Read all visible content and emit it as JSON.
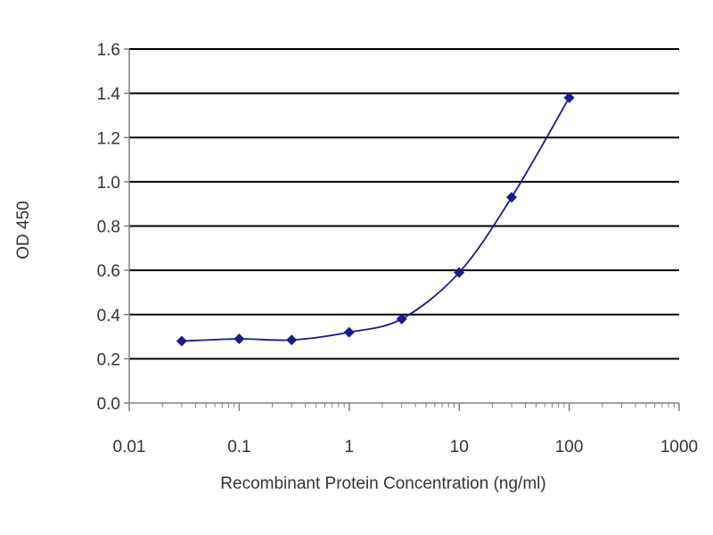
{
  "chart_data": {
    "type": "scatter",
    "xlabel": "Recombinant Protein Concentration (ng/ml)",
    "ylabel": "OD 450",
    "x_scale": "log",
    "xlim": [
      0.01,
      1000
    ],
    "ylim": [
      0,
      1.6
    ],
    "x_ticks": [
      "0.01",
      "0.1",
      "1",
      "10",
      "100",
      "1000"
    ],
    "y_ticks": [
      "0.0",
      "0.2",
      "0.4",
      "0.6",
      "0.8",
      "1.0",
      "1.2",
      "1.4",
      "1.6"
    ],
    "grid": "horizontal",
    "legend": "none",
    "colors": {
      "series": "#1a1a8c",
      "grid": "#000000",
      "axis": "#808080"
    },
    "series": [
      {
        "marker": "diamond",
        "fit": "smooth curve",
        "points": [
          {
            "x": 0.03,
            "y": 0.28
          },
          {
            "x": 0.1,
            "y": 0.29
          },
          {
            "x": 0.3,
            "y": 0.285
          },
          {
            "x": 1,
            "y": 0.32
          },
          {
            "x": 3,
            "y": 0.38
          },
          {
            "x": 10,
            "y": 0.59
          },
          {
            "x": 30,
            "y": 0.93
          },
          {
            "x": 100,
            "y": 1.38
          }
        ]
      }
    ]
  }
}
